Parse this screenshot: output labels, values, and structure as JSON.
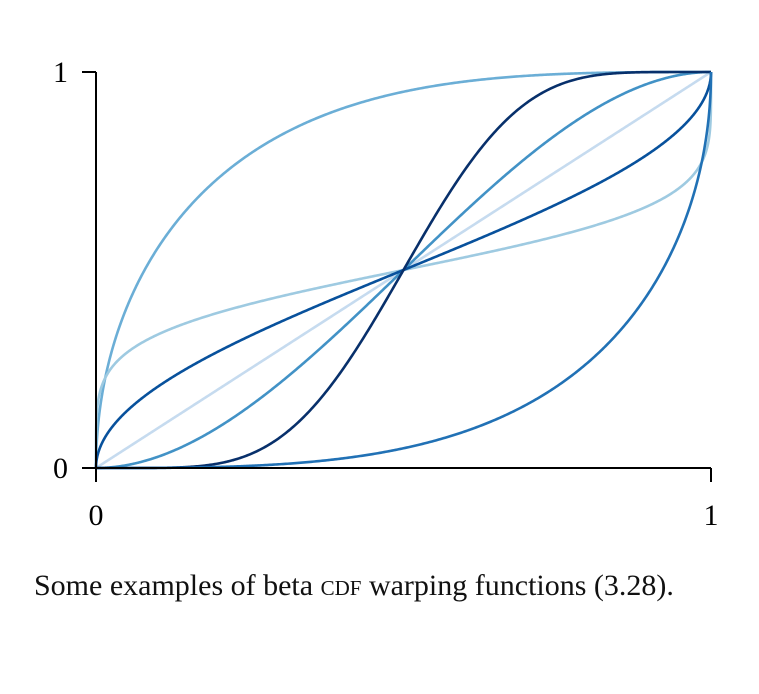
{
  "chart_data": {
    "type": "line",
    "title": "",
    "xlabel": "",
    "ylabel": "",
    "xlim": [
      0,
      1
    ],
    "ylim": [
      0,
      1
    ],
    "x_ticks": [
      "0",
      "1"
    ],
    "y_ticks": [
      "0",
      "1"
    ],
    "grid": false,
    "legend": "none",
    "series": [
      {
        "beta_params": [
          1,
          1
        ],
        "color": "#c6dbef",
        "x": [
          0,
          0.25,
          0.5,
          0.75,
          1
        ],
        "y": [
          0,
          0.25,
          0.5,
          0.75,
          1
        ]
      },
      {
        "beta_params": [
          0.5,
          3
        ],
        "color": "#6baed6",
        "x": [
          0,
          0.05,
          0.1,
          0.2,
          0.3,
          0.5,
          0.7,
          0.9,
          1
        ],
        "y": [
          0,
          0.36,
          0.51,
          0.7,
          0.82,
          0.95,
          0.99,
          1,
          1
        ]
      },
      {
        "beta_params": [
          2,
          2
        ],
        "color": "#4292c6",
        "x": [
          0,
          0.1,
          0.2,
          0.3,
          0.4,
          0.5,
          0.6,
          0.7,
          0.8,
          0.9,
          1
        ],
        "y": [
          0,
          0.028,
          0.104,
          0.216,
          0.352,
          0.5,
          0.648,
          0.784,
          0.896,
          0.972,
          1
        ]
      },
      {
        "beta_params": [
          0.2,
          0.2
        ],
        "color": "#9ecae1",
        "x": [
          0,
          0.02,
          0.1,
          0.3,
          0.5,
          0.7,
          0.9,
          0.98,
          1
        ],
        "y": [
          0,
          0.33,
          0.39,
          0.45,
          0.5,
          0.55,
          0.61,
          0.67,
          1
        ]
      },
      {
        "beta_params": [
          0.5,
          0.5
        ],
        "color": "#08519c",
        "x": [
          0,
          0.05,
          0.1,
          0.3,
          0.5,
          0.7,
          0.9,
          0.95,
          1
        ],
        "y": [
          0,
          0.14,
          0.2,
          0.37,
          0.5,
          0.63,
          0.8,
          0.86,
          1
        ]
      },
      {
        "beta_params": [
          6,
          6
        ],
        "color": "#08306b",
        "x": [
          0,
          0.2,
          0.3,
          0.4,
          0.5,
          0.6,
          0.7,
          0.8,
          1
        ],
        "y": [
          0,
          0.01,
          0.08,
          0.25,
          0.5,
          0.75,
          0.92,
          0.99,
          1
        ]
      },
      {
        "beta_params": [
          3,
          0.5
        ],
        "color": "#2171b5",
        "x": [
          0,
          0.3,
          0.5,
          0.7,
          0.8,
          0.9,
          0.95,
          1
        ],
        "y": [
          0,
          0.01,
          0.05,
          0.18,
          0.3,
          0.49,
          0.64,
          1
        ]
      }
    ]
  },
  "caption": {
    "text_before": "Some examples of beta ",
    "smallcaps": "cdf",
    "text_after": " warping functions (3.28)."
  }
}
